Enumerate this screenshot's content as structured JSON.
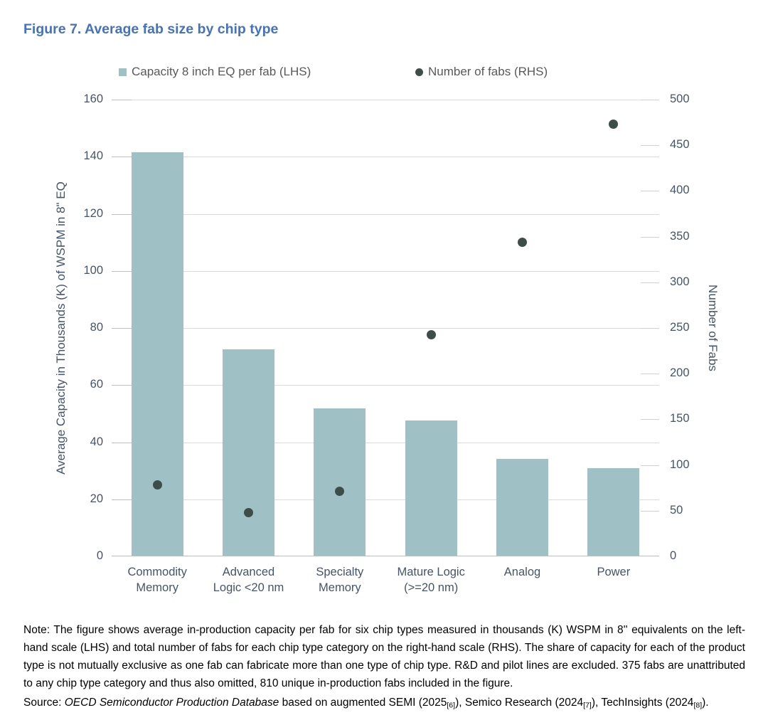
{
  "figure": {
    "title": "Figure 7. Average fab size by chip type"
  },
  "legend": {
    "items": [
      {
        "label": "Capacity 8 inch EQ per fab (LHS)",
        "marker": "square",
        "color": "#9FC0C4"
      },
      {
        "label": "Number of fabs (RHS)",
        "marker": "circle",
        "color": "#3D4E4A"
      }
    ]
  },
  "chart_data": {
    "type": "bar",
    "subtype": "combo bar + scatter, dual axis",
    "categories": [
      "Commodity Memory",
      "Advanced Logic <20 nm",
      "Specialty Memory",
      "Mature Logic (>=20 nm)",
      "Analog",
      "Power"
    ],
    "category_labels": [
      {
        "line1": "Commodity",
        "line2": "Memory"
      },
      {
        "line1": "Advanced",
        "line2": "Logic <20 nm"
      },
      {
        "line1": "Specialty",
        "line2": "Memory"
      },
      {
        "line1": "Mature Logic",
        "line2": "(>=20 nm)"
      },
      {
        "line1": "Analog",
        "line2": ""
      },
      {
        "line1": "Power",
        "line2": ""
      }
    ],
    "series": [
      {
        "name": "Capacity 8 inch EQ per fab (LHS)",
        "type": "bar",
        "axis": "left",
        "values": [
          141.4,
          72.4,
          51.7,
          47.3,
          33.9,
          30.6
        ],
        "color": "#9FC0C4"
      },
      {
        "name": "Number of fabs (RHS)",
        "type": "scatter",
        "axis": "right",
        "values": [
          78,
          48,
          71,
          243,
          344,
          473
        ],
        "color": "#3D4E4A"
      }
    ],
    "left_axis": {
      "title": "Average Capacity in Thousands (K) of WSPM in 8\" EQ",
      "min": 0,
      "max": 160,
      "step": 20,
      "ticks": [
        0,
        20,
        40,
        60,
        80,
        100,
        120,
        140,
        160
      ]
    },
    "right_axis": {
      "title": "Number of Fabs",
      "min": 0,
      "max": 500,
      "step": 50,
      "ticks": [
        0,
        50,
        100,
        150,
        200,
        250,
        300,
        350,
        400,
        450,
        500
      ]
    },
    "grid": "horizontal gridlines at left-axis steps, light gray",
    "legend_position": "top"
  },
  "note": {
    "text": "Note: The figure shows average in-production capacity per fab for six chip types measured in thousands (K) WSPM in 8'' equivalents on the left-hand scale (LHS) and total number of fabs for each chip type category on the right-hand scale (RHS). The share of capacity for each of the product type is not mutually exclusive as one fab can fabricate more than one type of chip type. R&D and pilot lines are excluded. 375 fabs are unattributed to any chip type category and thus also omitted, 810 unique in-production fabs included in the figure."
  },
  "source": {
    "label": "Source: ",
    "database": "OECD Semiconductor Production Database",
    "part1": " based on augmented SEMI (2025",
    "sub1": "[6]",
    "part2": "), Semico Research (2024",
    "sub2": "[7]",
    "part3": "), TechInsights (2024",
    "sub3": "[8]",
    "end": ")."
  },
  "colors": {
    "title": "#4572BE",
    "bar": "#9FC0C4",
    "dot": "#3D4E4A",
    "axis_text": "#44546A",
    "legend_text": "#595959",
    "gridline": "#DADADA"
  }
}
